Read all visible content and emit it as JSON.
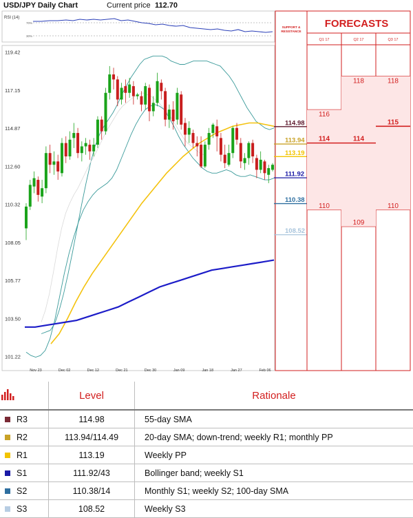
{
  "header": {
    "chart_title": "USD/JPY Daily Chart",
    "price_label": "Current price",
    "price_value": "112.70",
    "rsi_label": "RSI (14)",
    "rsi_upper": "70%",
    "rsi_lower": "30%",
    "sr_label_1": "SUPPORT &",
    "sr_label_2": "RESISTANCE",
    "forecasts_title": "FORECASTS",
    "quarters": [
      "Q1 17",
      "Q2 17",
      "Q3 17"
    ]
  },
  "sr_levels": [
    {
      "value": 114.98,
      "label": "114.98",
      "color": "#5e1a2e"
    },
    {
      "value": 113.94,
      "label": "113.94",
      "color": "#c9a227"
    },
    {
      "value": 113.19,
      "label": "113.19",
      "color": "#f2c400"
    },
    {
      "value": 111.92,
      "label": "111.92",
      "color": "#1a1aa6"
    },
    {
      "value": 110.38,
      "label": "110.38",
      "color": "#2e6fa0"
    },
    {
      "value": 108.52,
      "label": "108.52",
      "color": "#a8c4dc"
    }
  ],
  "forecasts": [
    {
      "quarter": "Q1 17",
      "high": 116,
      "high_label": "116",
      "mid": 114,
      "mid_label": "114",
      "low": 110,
      "low_label": "110"
    },
    {
      "quarter": "Q2 17",
      "high": 118,
      "high_label": "118",
      "mid": 114,
      "mid_label": "114",
      "low": 109,
      "low_label": "109"
    },
    {
      "quarter": "Q3 17",
      "high": 118,
      "high_label": "118",
      "mid": 115,
      "mid_label": "115",
      "low": 110,
      "low_label": "110"
    }
  ],
  "chart_data": {
    "type": "candlestick",
    "title": "USD/JPY Daily Chart",
    "ylim": [
      101.22,
      119.42
    ],
    "y_ticks": [
      "119.42",
      "117.15",
      "114.87",
      "112.60",
      "110.32",
      "108.05",
      "105.77",
      "103.50",
      "101.22"
    ],
    "x_ticks": [
      "Nov 23",
      "Dec 02",
      "Dec 12",
      "Dec 21",
      "Dec 30",
      "Jan 09",
      "Jan 18",
      "Jan 27",
      "Feb 06"
    ],
    "candles": [
      [
        108.9,
        110.2,
        108.2,
        110.4
      ],
      [
        110.2,
        111.5,
        110.0,
        111.8
      ],
      [
        111.4,
        111.9,
        111.0,
        112.3
      ],
      [
        111.8,
        110.9,
        110.5,
        112.0
      ],
      [
        110.8,
        111.3,
        110.4,
        111.8
      ],
      [
        111.3,
        113.4,
        111.0,
        113.8
      ],
      [
        113.4,
        112.7,
        112.2,
        113.9
      ],
      [
        112.7,
        112.9,
        112.1,
        113.5
      ],
      [
        112.9,
        112.3,
        111.8,
        113.3
      ],
      [
        112.2,
        114.0,
        112.0,
        114.3
      ],
      [
        114.0,
        113.2,
        112.8,
        114.4
      ],
      [
        113.2,
        114.2,
        113.0,
        114.7
      ],
      [
        114.3,
        114.6,
        113.7,
        115.2
      ],
      [
        114.6,
        113.4,
        113.1,
        114.9
      ],
      [
        113.4,
        113.8,
        112.9,
        114.1
      ],
      [
        113.8,
        114.0,
        113.3,
        114.3
      ],
      [
        113.9,
        113.5,
        113.0,
        114.2
      ],
      [
        113.5,
        113.9,
        113.2,
        114.3
      ],
      [
        113.9,
        115.4,
        113.7,
        115.6
      ],
      [
        115.4,
        114.7,
        114.2,
        115.6
      ],
      [
        114.7,
        117.0,
        114.5,
        117.3
      ],
      [
        117.0,
        118.1,
        116.6,
        118.6
      ],
      [
        118.1,
        117.8,
        117.2,
        118.5
      ],
      [
        117.8,
        116.6,
        116.2,
        118.0
      ],
      [
        116.6,
        117.3,
        116.3,
        117.6
      ],
      [
        117.4,
        117.0,
        116.4,
        117.8
      ],
      [
        117.0,
        117.5,
        116.7,
        117.9
      ],
      [
        117.4,
        116.8,
        116.3,
        117.7
      ],
      [
        116.8,
        116.9,
        116.6,
        117.0
      ],
      [
        116.8,
        116.3,
        115.9,
        117.1
      ],
      [
        116.3,
        117.4,
        116.0,
        117.6
      ],
      [
        117.3,
        115.9,
        115.3,
        117.5
      ],
      [
        115.9,
        116.4,
        115.6,
        116.8
      ],
      [
        116.4,
        117.7,
        116.2,
        118.2
      ],
      [
        117.6,
        117.1,
        116.6,
        117.8
      ],
      [
        117.1,
        115.4,
        115.0,
        117.3
      ],
      [
        115.4,
        116.0,
        114.9,
        116.3
      ],
      [
        116.0,
        115.3,
        114.8,
        116.5
      ],
      [
        115.4,
        117.0,
        115.1,
        117.3
      ],
      [
        116.9,
        115.1,
        114.8,
        117.1
      ],
      [
        115.2,
        114.5,
        113.8,
        115.5
      ],
      [
        114.5,
        114.9,
        114.0,
        115.3
      ],
      [
        114.6,
        114.0,
        113.7,
        114.8
      ],
      [
        114.0,
        113.8,
        113.2,
        114.4
      ],
      [
        113.9,
        112.6,
        112.5,
        114.4
      ],
      [
        112.6,
        113.9,
        112.5,
        114.1
      ],
      [
        113.9,
        114.6,
        113.6,
        114.9
      ],
      [
        114.6,
        115.1,
        114.3,
        115.2
      ],
      [
        115.0,
        114.4,
        113.5,
        115.4
      ],
      [
        114.3,
        113.3,
        112.9,
        114.6
      ],
      [
        113.3,
        112.8,
        112.5,
        113.9
      ],
      [
        112.7,
        113.4,
        112.6,
        113.9
      ],
      [
        113.4,
        114.9,
        113.1,
        115.0
      ],
      [
        114.9,
        114.2,
        113.9,
        115.2
      ],
      [
        114.0,
        112.9,
        112.5,
        114.3
      ],
      [
        112.8,
        113.1,
        112.4,
        113.4
      ],
      [
        113.1,
        114.0,
        112.7,
        114.1
      ],
      [
        114.0,
        113.2,
        112.8,
        114.2
      ],
      [
        113.1,
        112.4,
        111.9,
        113.3
      ],
      [
        112.4,
        113.0,
        112.2,
        113.5
      ],
      [
        112.9,
        112.2,
        111.8,
        113.0
      ],
      [
        112.1,
        112.5,
        111.6,
        112.7
      ],
      [
        112.4,
        112.7,
        112.3,
        112.8
      ]
    ],
    "series": [
      {
        "values": [
          102.6,
          102.7,
          102.8,
          103.2,
          104.0,
          105.0,
          106.2,
          107.5,
          108.9,
          110.3,
          111.6,
          112.8,
          113.8,
          114.5,
          115.0,
          115.4,
          115.8,
          116.3,
          116.9,
          117.4,
          117.9,
          118.3,
          118.7,
          119.0,
          119.1,
          119.2,
          119.2,
          119.2,
          119.1,
          118.9,
          118.8,
          118.7,
          118.7,
          118.8,
          118.9,
          118.9,
          118.9,
          118.9,
          118.8,
          118.7,
          118.6,
          118.3,
          118.0,
          117.6,
          117.1,
          116.6,
          116.1,
          115.7,
          115.3,
          115.1,
          114.9,
          114.8,
          114.9
        ]
      },
      {
        "values": [
          101.5,
          101.3,
          101.2,
          101.3,
          101.6,
          102.3,
          103.4,
          104.8,
          106.2,
          107.4,
          108.4,
          109.3,
          110.0,
          110.5,
          110.9,
          111.2,
          111.4,
          111.6,
          111.9,
          112.4,
          113.1,
          113.8,
          114.5,
          115.1,
          115.6,
          116.0,
          116.2,
          116.3,
          116.2,
          116.0,
          115.5,
          115.0,
          114.4,
          113.9,
          113.5,
          113.1,
          112.8,
          112.5,
          112.3,
          112.2,
          112.2,
          112.3,
          112.4,
          112.3,
          112.1,
          112.0,
          112.0,
          112.1,
          112.0,
          111.9,
          111.8,
          111.8,
          111.9
        ]
      },
      {
        "values": [
          103.3,
          104.0,
          105.0,
          106.3,
          107.7,
          108.9,
          109.8,
          110.4,
          110.9,
          111.3,
          111.8,
          112.3,
          112.8,
          113.2,
          113.7,
          114.2,
          114.7,
          115.1,
          115.5,
          115.9,
          116.2,
          116.4,
          116.6,
          116.8,
          116.9,
          117.0,
          116.9,
          116.8,
          116.6,
          116.4,
          116.1,
          115.8,
          115.5,
          115.1,
          114.7,
          114.3,
          114.0,
          113.8,
          113.6,
          113.4,
          113.3
        ]
      },
      {
        "values": [
          102.0,
          102.6,
          103.5,
          104.5,
          105.4,
          106.2,
          106.9,
          107.6,
          108.3,
          109.0,
          109.7,
          110.4,
          111.0,
          111.6,
          112.2,
          112.7,
          113.2,
          113.6,
          114.0,
          114.3,
          114.6,
          114.8,
          115.0,
          115.1,
          115.2,
          115.2,
          115.1,
          115.0
        ]
      },
      {
        "values": [
          103.0,
          103.0,
          103.1,
          103.2,
          103.3,
          103.4,
          103.6,
          103.8,
          104.0,
          104.2,
          104.5,
          104.8,
          105.1,
          105.4,
          105.6,
          105.8,
          106.0,
          106.2,
          106.4,
          106.5,
          106.6,
          106.7,
          106.8,
          106.9,
          107.0
        ]
      }
    ]
  },
  "table": {
    "col_level": "Level",
    "col_rationale": "Rationale",
    "rows": [
      {
        "name": "R3",
        "level": "114.98",
        "rationale": "55-day SMA",
        "color": "#7a2a35"
      },
      {
        "name": "R2",
        "level": "113.94/114.49",
        "rationale": "20-day SMA; down-trend; weekly R1; monthly PP",
        "color": "#c9a227"
      },
      {
        "name": "R1",
        "level": "113.19",
        "rationale": "Weekly PP",
        "color": "#f2c400"
      },
      {
        "name": "S1",
        "level": "111.92/43",
        "rationale": "Bollinger band; weekly S1",
        "color": "#1a1aa6"
      },
      {
        "name": "S2",
        "level": "110.38/14",
        "rationale": "Monthly S1; weekly S2; 100-day SMA",
        "color": "#2e6fa0"
      },
      {
        "name": "S3",
        "level": "108.52",
        "rationale": "Weekly S3",
        "color": "#b7cde3"
      }
    ]
  }
}
